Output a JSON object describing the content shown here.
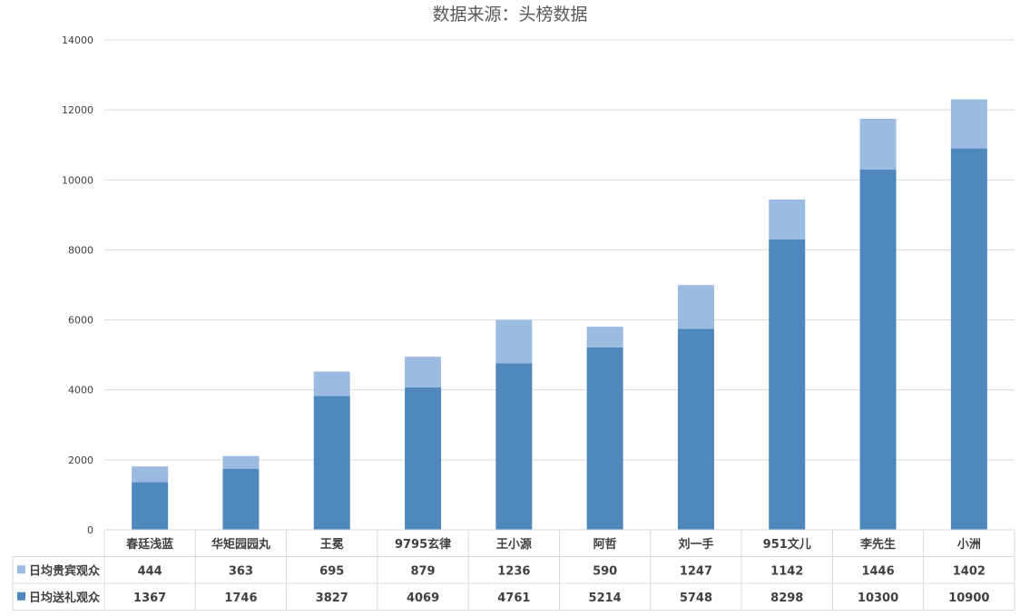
{
  "chart_data": {
    "type": "bar",
    "stacked": true,
    "title": "数据来源：头榜数据",
    "categories": [
      "春廷浅蓝",
      "华矩园园丸",
      "王冕",
      "9795玄律",
      "王小源",
      "阿哲",
      "刘一手",
      "951文儿",
      "李先生",
      "小洲"
    ],
    "series": [
      {
        "name": "日均送礼观众",
        "color": "#4f88bc",
        "values": [
          1367,
          1746,
          3827,
          4069,
          4761,
          5214,
          5748,
          8298,
          10300,
          10900
        ]
      },
      {
        "name": "日均贵宾观众",
        "color": "#9bbbe0",
        "values": [
          444,
          363,
          695,
          879,
          1236,
          590,
          1247,
          1142,
          1446,
          1402
        ]
      }
    ],
    "ylim": [
      0,
      14000
    ],
    "yticks": [
      "0",
      "2000",
      "4000",
      "6000",
      "8000",
      "10000",
      "12000",
      "14000"
    ],
    "grid": true,
    "legend": "data-table",
    "table_rows": [
      {
        "series_index": 1
      },
      {
        "series_index": 0
      }
    ]
  }
}
